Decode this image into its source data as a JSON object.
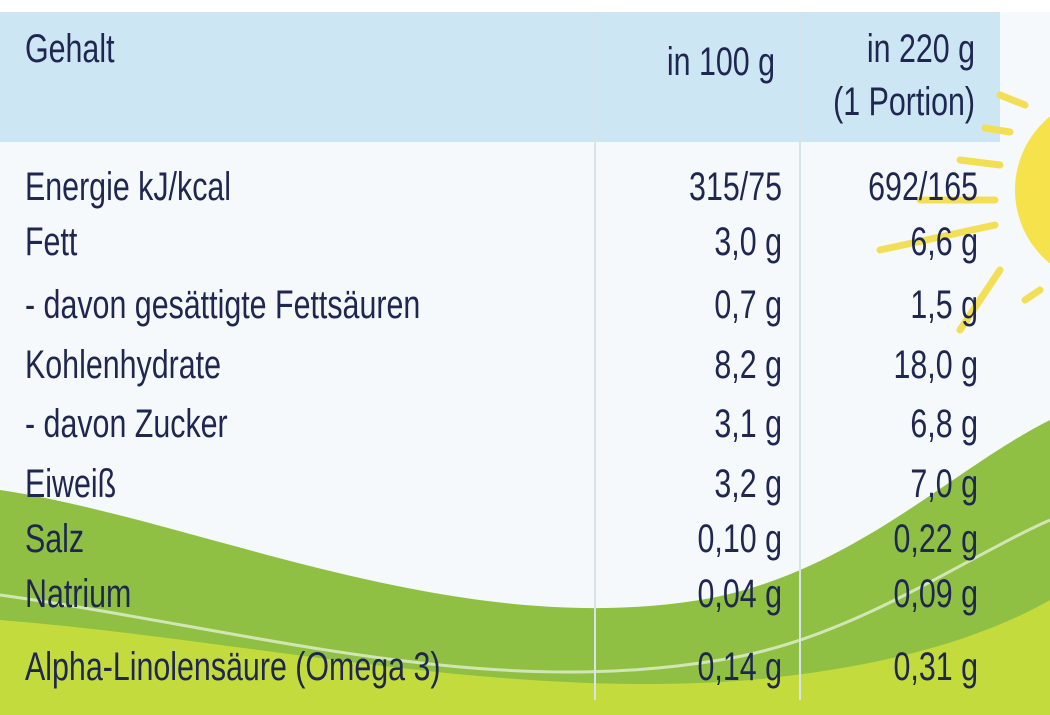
{
  "header": {
    "nutrient": "Gehalt",
    "per_100g": "in 100 g",
    "per_portion": "in 220 g",
    "portion_note": "(1 Portion)"
  },
  "table": {
    "rows": [
      [
        "Energie kJ/kcal",
        "315/75",
        "692/165"
      ],
      [
        "Fett",
        "3,0 g",
        "6,6 g"
      ],
      [
        "- davon gesättigte Fettsäuren",
        "0,7 g",
        "1,5 g"
      ],
      [
        "Kohlenhydrate",
        "8,2 g",
        "18,0 g"
      ],
      [
        "- davon Zucker",
        "3,1 g",
        "6,8 g"
      ],
      [
        "Eiweiß",
        "3,2 g",
        "7,0 g"
      ],
      [
        "Salz",
        "0,10 g",
        "0,22 g"
      ],
      [
        "Natrium",
        "0,04 g",
        "0,09 g"
      ],
      [
        "Alpha-Linolensäure (Omega 3)",
        "0,14 g",
        "0,31 g"
      ]
    ]
  }
}
